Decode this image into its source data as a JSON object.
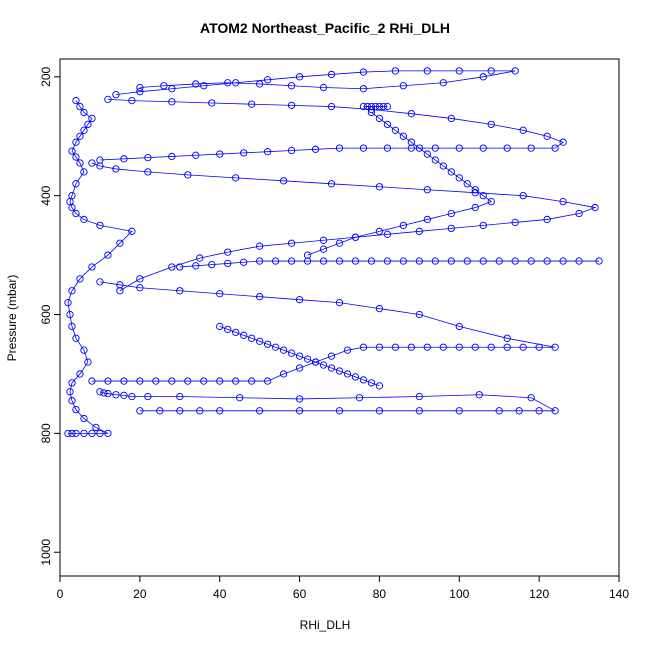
{
  "chart_data": {
    "type": "scatter",
    "title": "ATOM2 Northeast_Pacific_2 RHi_DLH",
    "xlabel": "RHi_DLH",
    "ylabel": "Pressure (mbar)",
    "xlim": [
      0,
      140
    ],
    "ylim": [
      1040,
      170
    ],
    "y_reversed": true,
    "grid": false,
    "marker": "open-circle",
    "connected": true,
    "color": "#0000ff",
    "xticks": [
      0,
      20,
      40,
      60,
      80,
      100,
      120,
      140
    ],
    "xtick_labels": [
      "0",
      "20",
      "40",
      "60",
      "80",
      "100",
      "120",
      "140"
    ],
    "yticks": [
      200,
      400,
      600,
      800,
      1000
    ],
    "ytick_labels": [
      "200",
      "400",
      "600",
      "800",
      "1000"
    ],
    "series": [
      {
        "x": [
          2,
          3,
          4,
          6,
          8,
          10,
          12,
          9,
          6,
          4,
          3,
          2.5,
          3,
          5,
          7,
          6,
          4,
          3,
          2.5,
          2,
          3,
          5,
          8,
          12,
          15,
          18,
          10,
          6,
          4,
          3,
          2.5,
          3,
          4,
          6,
          5,
          4,
          3,
          4,
          5,
          6,
          7,
          8,
          6,
          5,
          4
        ],
        "y": [
          800,
          800,
          800,
          800,
          800,
          800,
          800,
          790,
          775,
          760,
          745,
          730,
          715,
          700,
          680,
          660,
          640,
          620,
          600,
          580,
          560,
          540,
          520,
          500,
          480,
          460,
          450,
          440,
          430,
          420,
          410,
          400,
          380,
          360,
          345,
          335,
          325,
          310,
          300,
          290,
          280,
          270,
          260,
          250,
          240
        ]
      },
      {
        "x": [
          8,
          12,
          16,
          20,
          24,
          28,
          32,
          36,
          40,
          44,
          48,
          52,
          56,
          60,
          64,
          68,
          72,
          76,
          80,
          84,
          88,
          92,
          96,
          100,
          104,
          108,
          112,
          116,
          120,
          124,
          112,
          100,
          90,
          80,
          70,
          60,
          50,
          40,
          30,
          20,
          15,
          10
        ],
        "y": [
          712,
          712,
          712,
          712,
          712,
          712,
          712,
          712,
          712,
          712,
          712,
          712,
          700,
          690,
          680,
          670,
          660,
          655,
          655,
          655,
          655,
          655,
          655,
          655,
          655,
          655,
          655,
          655,
          655,
          655,
          640,
          620,
          600,
          590,
          580,
          575,
          570,
          565,
          560,
          555,
          550,
          545
        ]
      },
      {
        "x": [
          20,
          25,
          30,
          35,
          40,
          50,
          60,
          70,
          80,
          90,
          100,
          110,
          115,
          120,
          124,
          118,
          105,
          90,
          75,
          60,
          45,
          30,
          22,
          18,
          16,
          14,
          12,
          11,
          10
        ],
        "y": [
          762,
          762,
          762,
          762,
          762,
          762,
          762,
          762,
          762,
          762,
          762,
          762,
          762,
          762,
          762,
          740,
          735,
          738,
          740,
          742,
          740,
          738,
          738,
          738,
          736,
          735,
          733,
          732,
          730
        ]
      },
      {
        "x": [
          15,
          20,
          28,
          35,
          42,
          50,
          58,
          66,
          74,
          82,
          90,
          98,
          106,
          114,
          122,
          130,
          134,
          126,
          116,
          104,
          92,
          80,
          68,
          56,
          44,
          32,
          22,
          14,
          10,
          8
        ],
        "y": [
          560,
          540,
          520,
          505,
          495,
          485,
          480,
          475,
          470,
          465,
          460,
          455,
          450,
          445,
          440,
          430,
          420,
          410,
          400,
          395,
          390,
          385,
          380,
          375,
          370,
          365,
          360,
          355,
          350,
          345
        ]
      },
      {
        "x": [
          10,
          16,
          22,
          28,
          34,
          40,
          46,
          52,
          58,
          64,
          70,
          76,
          82,
          88,
          94,
          100,
          106,
          112,
          118,
          124,
          126,
          122,
          116,
          108,
          98,
          88,
          78,
          68,
          58,
          48,
          38,
          28,
          18,
          12
        ],
        "y": [
          340,
          338,
          336,
          334,
          332,
          330,
          328,
          326,
          324,
          322,
          320,
          320,
          320,
          320,
          320,
          320,
          320,
          320,
          320,
          320,
          310,
          300,
          290,
          280,
          270,
          262,
          255,
          250,
          248,
          246,
          244,
          242,
          240,
          238
        ]
      },
      {
        "x": [
          14,
          20,
          28,
          36,
          44,
          52,
          60,
          68,
          76,
          84,
          92,
          100,
          108,
          114,
          106,
          96,
          86,
          76,
          66,
          58,
          50,
          42,
          34,
          26,
          20
        ],
        "y": [
          230,
          225,
          220,
          215,
          210,
          205,
          200,
          196,
          192,
          190,
          190,
          190,
          190,
          190,
          200,
          210,
          215,
          220,
          218,
          215,
          212,
          210,
          212,
          215,
          218
        ]
      },
      {
        "x": [
          78,
          80,
          82,
          84,
          86,
          88,
          90,
          92,
          94,
          96,
          98,
          100,
          102,
          104,
          106,
          108,
          104,
          98,
          92,
          86,
          80,
          74,
          70,
          66,
          62
        ],
        "y": [
          260,
          270,
          280,
          290,
          300,
          310,
          320,
          330,
          340,
          350,
          360,
          370,
          380,
          390,
          400,
          410,
          420,
          430,
          440,
          450,
          460,
          470,
          480,
          490,
          500
        ]
      },
      {
        "x": [
          30,
          34,
          38,
          42,
          46,
          50,
          54,
          58,
          62,
          66,
          70,
          74,
          78,
          82,
          86,
          90,
          94,
          98,
          102,
          106,
          110,
          114,
          118,
          122,
          126,
          130,
          135
        ],
        "y": [
          520,
          518,
          516,
          514,
          512,
          510,
          510,
          510,
          510,
          510,
          510,
          510,
          510,
          510,
          510,
          510,
          510,
          510,
          510,
          510,
          510,
          510,
          510,
          510,
          510,
          510,
          510
        ]
      },
      {
        "x": [
          40,
          42,
          44,
          46,
          48,
          50,
          52,
          54,
          56,
          58,
          60,
          62,
          64,
          66,
          68,
          70,
          72,
          74,
          76,
          78,
          80
        ],
        "y": [
          620,
          625,
          630,
          635,
          640,
          645,
          650,
          655,
          660,
          665,
          670,
          675,
          680,
          685,
          690,
          695,
          700,
          705,
          710,
          715,
          720
        ]
      },
      {
        "x": [
          76,
          77,
          78,
          79,
          80,
          81,
          82
        ],
        "y": [
          250,
          250,
          250,
          250,
          250,
          250,
          250
        ]
      }
    ]
  }
}
